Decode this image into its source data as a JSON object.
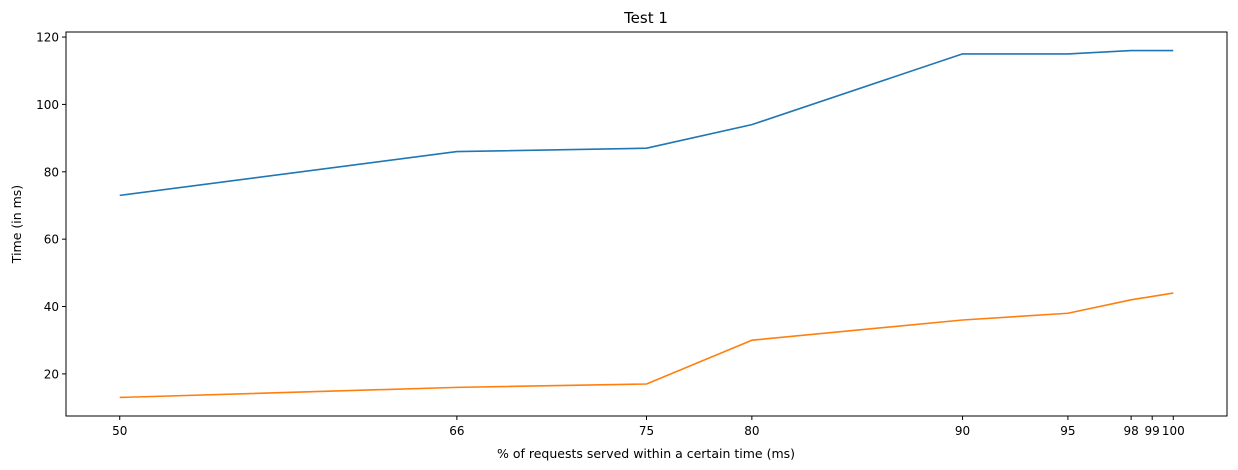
{
  "chart_data": {
    "type": "line",
    "title": "Test 1",
    "xlabel": "% of requests served within a certain time (ms)",
    "ylabel": "Time (in ms)",
    "x": [
      50,
      66,
      75,
      80,
      90,
      95,
      98,
      99,
      100
    ],
    "x_ticks": [
      50,
      66,
      75,
      80,
      90,
      95,
      98,
      99,
      100
    ],
    "y_ticks": [
      20,
      40,
      60,
      80,
      100,
      120
    ],
    "xlim": [
      47.45,
      102.55
    ],
    "ylim": [
      7.5,
      121.5
    ],
    "grid": false,
    "series": [
      {
        "color": "#1f77b4",
        "values": [
          73,
          86,
          87,
          94,
          115,
          115,
          116,
          116,
          116
        ]
      },
      {
        "color": "#ff7f0e",
        "values": [
          13,
          16,
          17,
          30,
          36,
          38,
          42,
          43,
          44
        ]
      }
    ]
  }
}
